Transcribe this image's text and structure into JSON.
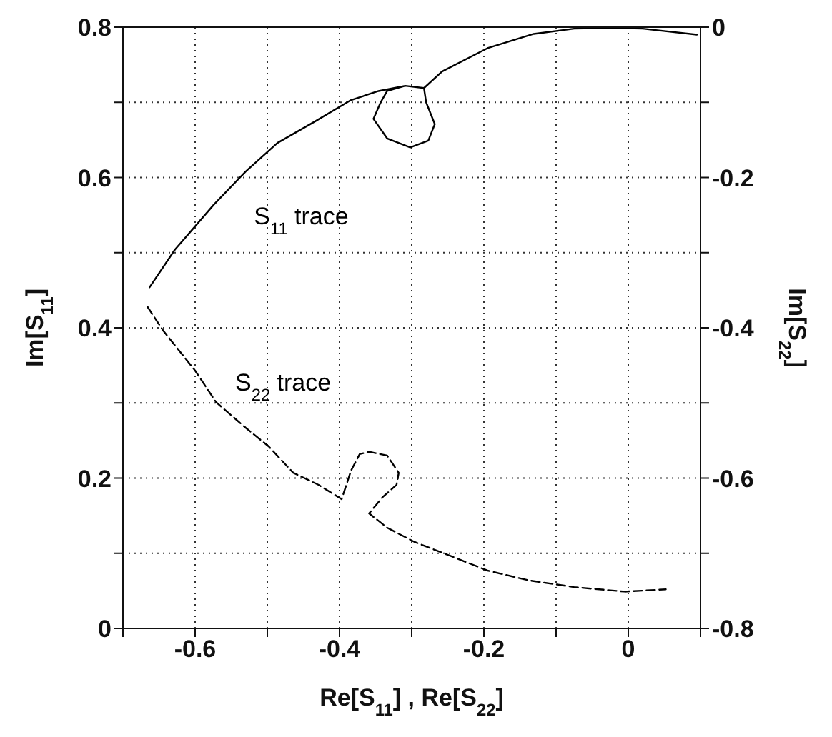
{
  "chart_data": {
    "type": "line",
    "xlabel": "Re[S$_{11}$] , Re[S$_{22}$]",
    "ylabel": "Im[S$_{11}$]",
    "y2label": "Im[S$_{22}$]",
    "xlim": [
      -0.7,
      0.1
    ],
    "xticks": [
      {
        "value": -0.7,
        "label": null
      },
      -0.6,
      {
        "value": -0.5,
        "label": null
      },
      -0.4,
      {
        "value": -0.3,
        "label": null
      },
      -0.2,
      {
        "value": -0.1,
        "label": null
      },
      0,
      {
        "value": 0.1,
        "label": null
      }
    ],
    "ylim": [
      0,
      0.8
    ],
    "yticks": [
      0,
      {
        "value": 0.1,
        "label": null
      },
      0.2,
      {
        "value": 0.3,
        "label": null
      },
      0.4,
      {
        "value": 0.5,
        "label": null
      },
      0.6,
      {
        "value": 0.7,
        "label": null
      },
      0.8
    ],
    "y2lim": [
      -0.8,
      0
    ],
    "y2ticks": [
      -0.8,
      {
        "value": -0.7,
        "label": null
      },
      -0.6,
      {
        "value": -0.5,
        "label": null
      },
      -0.4,
      {
        "value": -0.3,
        "label": null
      },
      -0.2,
      {
        "value": -0.1,
        "label": null
      },
      0
    ],
    "grid": true,
    "marker": "none",
    "series": [
      {
        "name": "S$_{11}$ trace",
        "color": "#000000",
        "line_style": "solid",
        "x": [
          -0.663,
          -0.628,
          -0.574,
          -0.53,
          -0.486,
          -0.435,
          -0.384,
          -0.346,
          -0.309,
          -0.283,
          -0.28,
          -0.268,
          -0.277,
          -0.302,
          -0.334,
          -0.353,
          -0.343,
          -0.334,
          -0.309,
          -0.283,
          -0.258,
          -0.195,
          -0.131,
          -0.075,
          -0.024,
          0.02,
          0.095
        ],
        "values": [
          0.454,
          0.504,
          0.564,
          0.608,
          0.646,
          0.674,
          0.703,
          0.715,
          0.722,
          0.719,
          0.7,
          0.671,
          0.649,
          0.64,
          0.652,
          0.678,
          0.7,
          0.715,
          0.722,
          0.719,
          0.741,
          0.772,
          0.791,
          0.798,
          0.799,
          0.798,
          0.79
        ]
      },
      {
        "name": "S$_{22}$ trace",
        "color": "#000000",
        "line_style": "dashed",
        "axis": "y2",
        "x": [
          -0.666,
          -0.644,
          -0.6,
          -0.571,
          -0.53,
          -0.498,
          -0.464,
          -0.429,
          -0.397,
          -0.384,
          -0.372,
          -0.359,
          -0.334,
          -0.318,
          -0.321,
          -0.34,
          -0.359,
          -0.334,
          -0.296,
          -0.245,
          -0.195,
          -0.138,
          -0.075,
          -0.005,
          0.052
        ],
        "values": [
          -0.372,
          -0.404,
          -0.457,
          -0.499,
          -0.533,
          -0.558,
          -0.593,
          -0.609,
          -0.628,
          -0.59,
          -0.568,
          -0.565,
          -0.57,
          -0.593,
          -0.609,
          -0.625,
          -0.647,
          -0.666,
          -0.685,
          -0.704,
          -0.723,
          -0.736,
          -0.745,
          -0.751,
          -0.748
        ]
      }
    ]
  }
}
